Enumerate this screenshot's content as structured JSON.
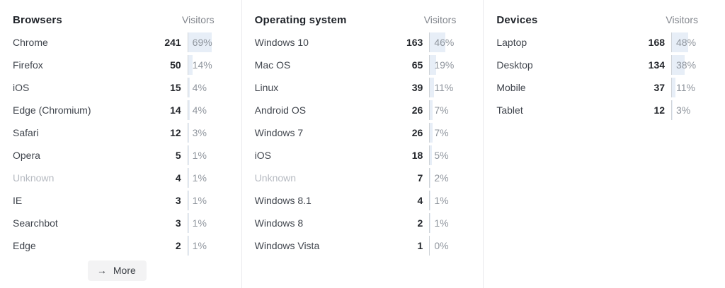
{
  "icons": {
    "arrow_right": "→"
  },
  "colors": {
    "percent_bar_fill": "#e7eef7",
    "divider_line": "#cfd3d8",
    "column_separator": "#e9eaec",
    "muted_text": "#b6bac1",
    "more_button_bg": "#f3f3f4"
  },
  "sections": [
    {
      "title": "Browsers",
      "visitors_label": "Visitors",
      "has_more": true,
      "more_label": "More",
      "rows": [
        {
          "label": "Chrome",
          "count": "241",
          "pct": "69%",
          "pct_value": 69,
          "muted": false
        },
        {
          "label": "Firefox",
          "count": "50",
          "pct": "14%",
          "pct_value": 14,
          "muted": false
        },
        {
          "label": "iOS",
          "count": "15",
          "pct": "4%",
          "pct_value": 4,
          "muted": false
        },
        {
          "label": "Edge (Chromium)",
          "count": "14",
          "pct": "4%",
          "pct_value": 4,
          "muted": false
        },
        {
          "label": "Safari",
          "count": "12",
          "pct": "3%",
          "pct_value": 3,
          "muted": false
        },
        {
          "label": "Opera",
          "count": "5",
          "pct": "1%",
          "pct_value": 1,
          "muted": false
        },
        {
          "label": "Unknown",
          "count": "4",
          "pct": "1%",
          "pct_value": 1,
          "muted": true
        },
        {
          "label": "IE",
          "count": "3",
          "pct": "1%",
          "pct_value": 1,
          "muted": false
        },
        {
          "label": "Searchbot",
          "count": "3",
          "pct": "1%",
          "pct_value": 1,
          "muted": false
        },
        {
          "label": "Edge",
          "count": "2",
          "pct": "1%",
          "pct_value": 1,
          "muted": false
        }
      ]
    },
    {
      "title": "Operating system",
      "visitors_label": "Visitors",
      "has_more": false,
      "more_label": "",
      "rows": [
        {
          "label": "Windows 10",
          "count": "163",
          "pct": "46%",
          "pct_value": 46,
          "muted": false
        },
        {
          "label": "Mac OS",
          "count": "65",
          "pct": "19%",
          "pct_value": 19,
          "muted": false
        },
        {
          "label": "Linux",
          "count": "39",
          "pct": "11%",
          "pct_value": 11,
          "muted": false
        },
        {
          "label": "Android OS",
          "count": "26",
          "pct": "7%",
          "pct_value": 7,
          "muted": false
        },
        {
          "label": "Windows 7",
          "count": "26",
          "pct": "7%",
          "pct_value": 7,
          "muted": false
        },
        {
          "label": "iOS",
          "count": "18",
          "pct": "5%",
          "pct_value": 5,
          "muted": false
        },
        {
          "label": "Unknown",
          "count": "7",
          "pct": "2%",
          "pct_value": 2,
          "muted": true
        },
        {
          "label": "Windows 8.1",
          "count": "4",
          "pct": "1%",
          "pct_value": 1,
          "muted": false
        },
        {
          "label": "Windows 8",
          "count": "2",
          "pct": "1%",
          "pct_value": 1,
          "muted": false
        },
        {
          "label": "Windows Vista",
          "count": "1",
          "pct": "0%",
          "pct_value": 0,
          "muted": false
        }
      ]
    },
    {
      "title": "Devices",
      "visitors_label": "Visitors",
      "has_more": false,
      "more_label": "",
      "rows": [
        {
          "label": "Laptop",
          "count": "168",
          "pct": "48%",
          "pct_value": 48,
          "muted": false
        },
        {
          "label": "Desktop",
          "count": "134",
          "pct": "38%",
          "pct_value": 38,
          "muted": false
        },
        {
          "label": "Mobile",
          "count": "37",
          "pct": "11%",
          "pct_value": 11,
          "muted": false
        },
        {
          "label": "Tablet",
          "count": "12",
          "pct": "3%",
          "pct_value": 3,
          "muted": false
        }
      ]
    }
  ]
}
